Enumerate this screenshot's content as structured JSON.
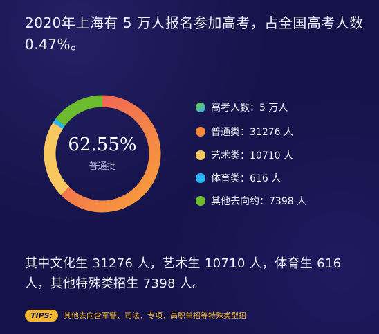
{
  "headline": "2020年上海有 5 万人报名参加高考，占全国高考人数 0.47%。",
  "center": {
    "value": "62.55%",
    "label": "普通批"
  },
  "legend": [
    {
      "label": "高考人数：5 万人",
      "color": "#4fc3e8"
    },
    {
      "label": "普通类：31276 人",
      "color": "#f7883a"
    },
    {
      "label": "艺术类：10710 人",
      "color": "#f6c85f"
    },
    {
      "label": "体育类：616 人",
      "color": "#29b6f6"
    },
    {
      "label": "其他去向约：7398 人",
      "color": "#6dbb2f"
    }
  ],
  "chart_data": {
    "type": "pie",
    "categories": [
      "普通类",
      "艺术类",
      "体育类",
      "其他去向约"
    ],
    "values": [
      31276,
      10710,
      616,
      7398
    ],
    "colors": [
      "#f7883a",
      "#f6c85f",
      "#29b6f6",
      "#6dbb2f"
    ],
    "donut": true,
    "center_text": "62.55%",
    "center_label": "普通批",
    "legend_position": "right"
  },
  "summary": "其中文化生 31276 人，艺术生 10710 人，体育生 616 人，其他特殊类招生 7398 人。",
  "tips": {
    "badge": "TIPS:",
    "text": "其他去向含军警、司法、专项、高职单招等特殊类型招"
  }
}
